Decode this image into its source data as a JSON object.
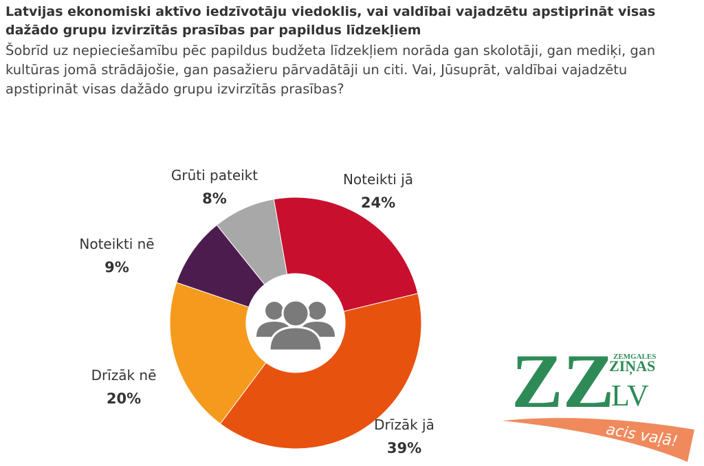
{
  "chart_data": {
    "type": "donut",
    "title": "Latvijas ekonomiski aktīvo iedzīvotāju viedoklis, vai valdībai vajadzētu apstiprināt visas dažādo grupu izvirzītās prasības par papildus līdzekļiem",
    "subtitle": "Šobrīd uz nepieciešamību pēc papildus budžeta līdzekļiem norāda gan skolotāji, gan mediķi, gan kultūras jomā strādājošie, gan pasažieru pārvadātāji un citi. Vai, Jūsuprāt, valdībai vajadzētu apstiprināt visas dažādo grupu izvirzītās prasības?",
    "categories": [
      "Noteikti jā",
      "Drīzāk jā",
      "Drīzāk nē",
      "Noteikti nē",
      "Grūti pateikt"
    ],
    "values": [
      24,
      39,
      20,
      9,
      8
    ],
    "value_labels": [
      "24%",
      "39%",
      "20%",
      "9%",
      "8%"
    ],
    "colors": [
      "#c8102e",
      "#e8520f",
      "#f59a1d",
      "#4d1c4f",
      "#a8a8a8"
    ]
  },
  "logo": {
    "main": "ZZ",
    "top": "ZEMGALES",
    "name": "ZIŅAS",
    "domain": ".LV",
    "slogan": "acis vaļā!"
  }
}
